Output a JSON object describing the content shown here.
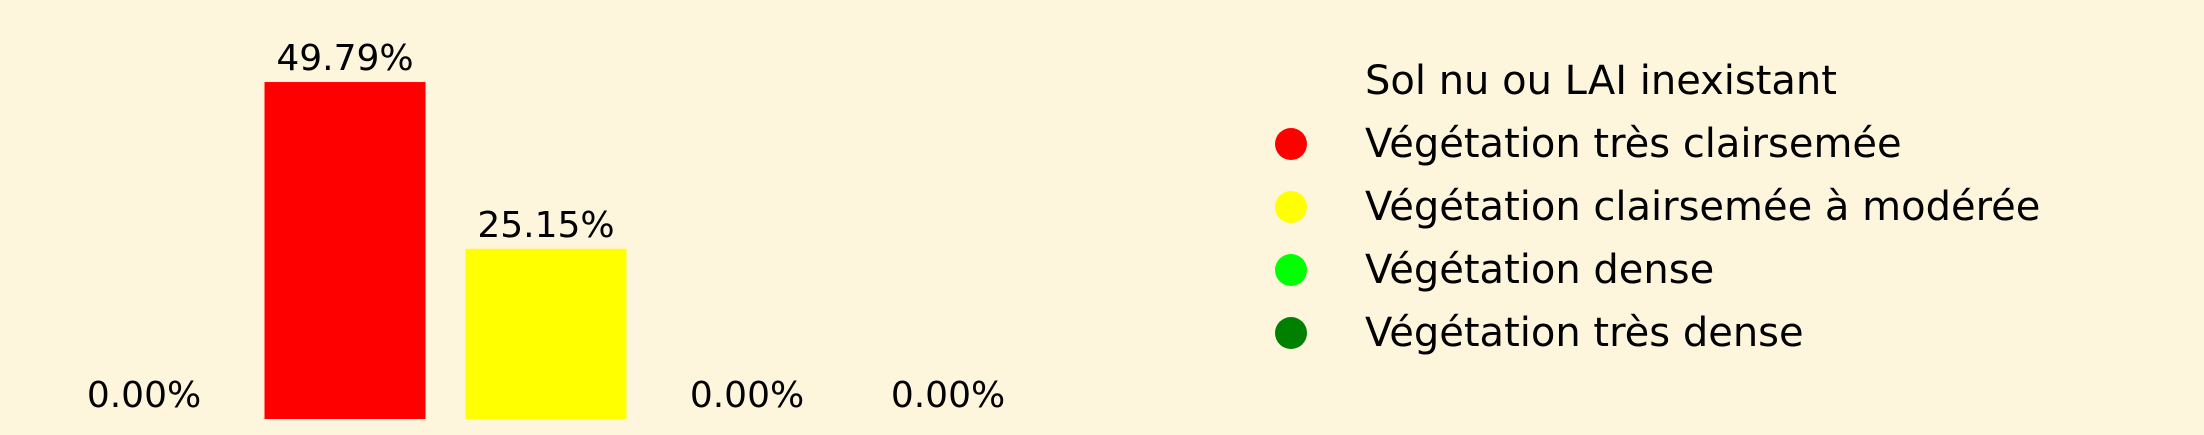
{
  "chart_data": {
    "type": "bar",
    "categories": [
      "Sol nu ou LAI inexistant",
      "Végétation très clairsemée",
      "Végétation clairsemée à modérée",
      "Végétation dense",
      "Végétation très dense"
    ],
    "values": [
      0.0,
      49.79,
      25.15,
      0.0,
      0.0
    ],
    "value_labels": [
      "0.00%",
      "49.79%",
      "25.15%",
      "0.00%",
      "0.00%"
    ],
    "colors": [
      "#fdf6dc",
      "#ff0000",
      "#ffff00",
      "#00ff00",
      "#008000"
    ],
    "ylim": [
      0,
      56
    ],
    "grid": false,
    "axes_visible": false,
    "legend_placement": "right",
    "background": "#fdf6dc"
  }
}
